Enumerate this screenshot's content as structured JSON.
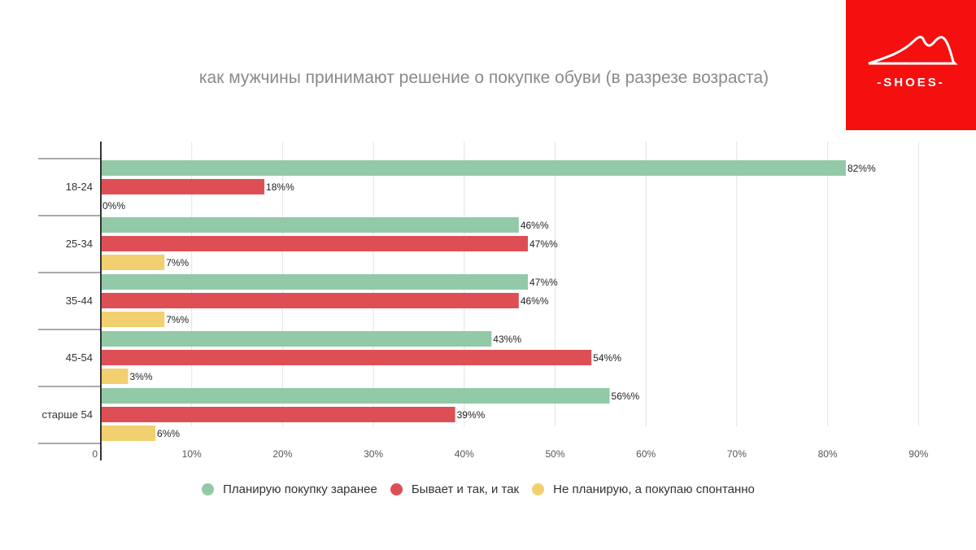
{
  "colors": {
    "series_0": "#92c9a7",
    "series_1": "#de4f55",
    "series_2": "#f2d06f",
    "brand": "#f50f0f"
  },
  "logo": {
    "text": "-SHOES-",
    "icon": "shoe-swoosh-icon"
  },
  "chart_data": {
    "type": "bar",
    "orientation": "horizontal",
    "title": "как мужчины принимают решение о покупке обуви (в разрезе возраста)",
    "categories": [
      "18-24",
      "25-34",
      "35-44",
      "45-54",
      "старше 54"
    ],
    "series": [
      {
        "name": "Планирую покупку заранее",
        "values": [
          82,
          46,
          47,
          43,
          56
        ]
      },
      {
        "name": "Бывает и так, и так",
        "values": [
          18,
          47,
          46,
          54,
          39
        ]
      },
      {
        "name": "Не планирую, а покупаю спонтанно",
        "values": [
          0,
          7,
          7,
          3,
          6
        ]
      }
    ],
    "data_label_suffix": "%%",
    "x_ticks": [
      "0",
      "10%",
      "20%",
      "30%",
      "40%",
      "50%",
      "60%",
      "70%",
      "80%",
      "90%"
    ],
    "xlim": [
      0,
      90
    ],
    "grid": true,
    "legend_position": "bottom"
  }
}
